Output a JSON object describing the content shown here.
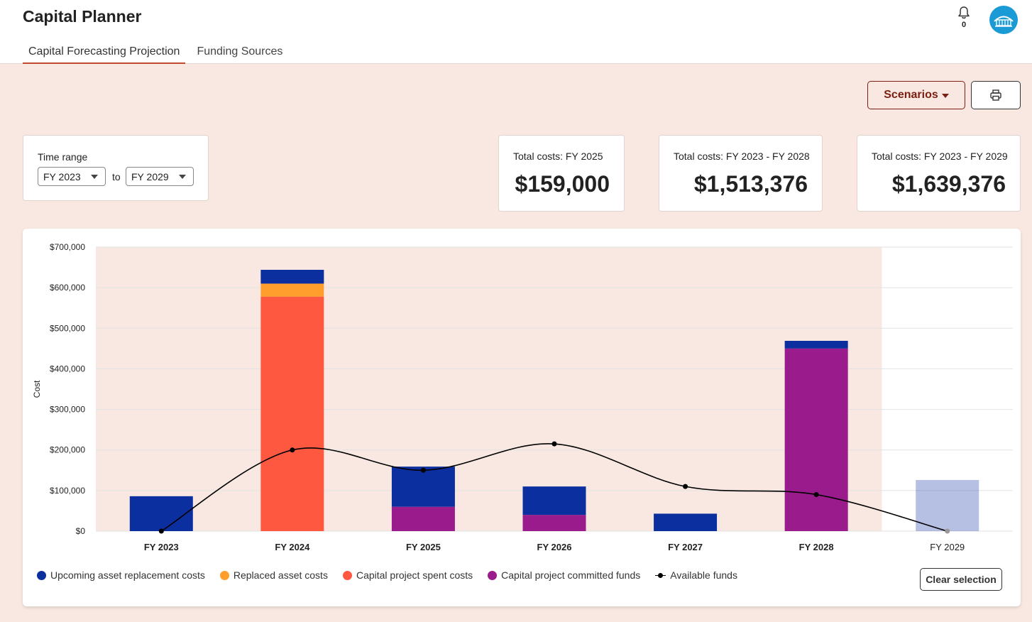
{
  "app": {
    "title": "Capital Planner"
  },
  "notifications": {
    "count": "0",
    "icon": "bell-icon"
  },
  "avatar": {
    "icon": "building-logo-icon",
    "color": "#1a9bd6"
  },
  "tabs": [
    {
      "label": "Capital Forecasting Projection",
      "active": true
    },
    {
      "label": "Funding Sources",
      "active": false
    }
  ],
  "toolbar": {
    "scenarios_label": "Scenarios",
    "print_icon": "printer-icon"
  },
  "time_range": {
    "label": "Time range",
    "from": "FY 2023",
    "to_label": "to",
    "to": "FY 2029"
  },
  "stats": [
    {
      "label": "Total costs: FY 2025",
      "value": "$159,000"
    },
    {
      "label": "Total costs: FY 2023 - FY 2028",
      "value": "$1,513,376"
    },
    {
      "label": "Total costs: FY 2023 - FY 2029",
      "value": "$1,639,376"
    }
  ],
  "chart_data": {
    "type": "bar",
    "stacked": true,
    "ylabel": "Cost",
    "xlabel": "",
    "ylim": [
      0,
      700000
    ],
    "y_ticks": [
      "$0",
      "$100,000",
      "$200,000",
      "$300,000",
      "$400,000",
      "$500,000",
      "$600,000",
      "$700,000"
    ],
    "grid": true,
    "categories": [
      "FY 2023",
      "FY 2024",
      "FY 2025",
      "FY 2026",
      "FY 2027",
      "FY 2028",
      "FY 2029"
    ],
    "selected_categories": [
      "FY 2023",
      "FY 2024",
      "FY 2025",
      "FY 2026",
      "FY 2027",
      "FY 2028"
    ],
    "series": [
      {
        "name": "Capital project committed funds",
        "color": "#9a1b8b",
        "values": [
          0,
          0,
          60000,
          40000,
          0,
          450000,
          0
        ]
      },
      {
        "name": "Capital project spent costs",
        "color": "#ff5841",
        "values": [
          0,
          578000,
          0,
          0,
          0,
          0,
          0
        ]
      },
      {
        "name": "Replaced asset costs",
        "color": "#ff9e2c",
        "values": [
          0,
          32000,
          0,
          0,
          0,
          0,
          0
        ]
      },
      {
        "name": "Upcoming asset replacement costs",
        "color": "#0c2f9f",
        "values": [
          86000,
          34000,
          99000,
          70000,
          43000,
          19000,
          126000
        ]
      }
    ],
    "line": {
      "name": "Available funds",
      "color": "#000000",
      "values": [
        0,
        200000,
        150000,
        215000,
        110000,
        90000,
        0
      ]
    },
    "legend_position": "bottom-left",
    "legend": [
      {
        "label": "Upcoming asset replacement costs",
        "color": "#0c2f9f",
        "kind": "dot"
      },
      {
        "label": "Replaced asset costs",
        "color": "#ff9e2c",
        "kind": "dot"
      },
      {
        "label": "Capital project spent costs",
        "color": "#ff5841",
        "kind": "dot"
      },
      {
        "label": "Capital project committed funds",
        "color": "#9a1b8b",
        "kind": "dot"
      },
      {
        "label": "Available funds",
        "color": "#000000",
        "kind": "line"
      }
    ]
  },
  "actions": {
    "clear_selection": "Clear selection"
  }
}
